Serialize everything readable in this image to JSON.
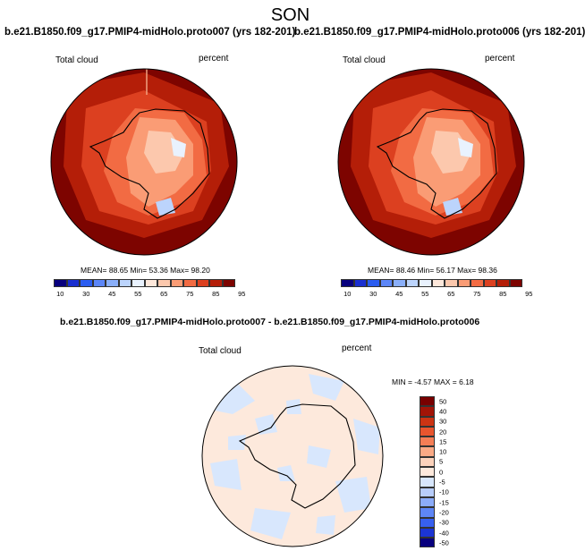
{
  "season": "SON",
  "panels": [
    {
      "case": "b.e21.B1850.f09_g17.PMIP4-midHolo.proto007 (yrs 182-201)",
      "field": "Total cloud",
      "units": "percent",
      "stats": "MEAN= 88.65 Min= 53.36 Max= 98.20"
    },
    {
      "case": "b.e21.B1850.f09_g17.PMIP4-midHolo.proto006 (yrs 182-201)",
      "field": "Total cloud",
      "units": "percent",
      "stats": "MEAN= 88.46 Min= 56.17 Max= 98.36"
    }
  ],
  "diff_panel": {
    "title": "b.e21.B1850.f09_g17.PMIP4-midHolo.proto007 - b.e21.B1850.f09_g17.PMIP4-midHolo.proto006",
    "field": "Total cloud",
    "units": "percent",
    "stats": "MIN = -4.57 MAX = 6.18"
  },
  "colorbar": {
    "colors": [
      "#08007e",
      "#1a2fd0",
      "#2b5df0",
      "#5c86f7",
      "#8aaffa",
      "#bcd4fc",
      "#e9f2fe",
      "#fee8db",
      "#fcc8ad",
      "#fa9c75",
      "#f26b43",
      "#dc4020",
      "#b41e08",
      "#7d0400"
    ],
    "tick_labels": [
      "10",
      "30",
      "45",
      "55",
      "65",
      "75",
      "85",
      "95"
    ]
  },
  "diff_colorbar": {
    "colors": [
      "#08007e",
      "#1c35d4",
      "#3760f0",
      "#5e86f6",
      "#8cacfa",
      "#b8cdfb",
      "#d8e7fd",
      "#fde9dc",
      "#fcd2bb",
      "#fbaa86",
      "#f57e56",
      "#e9552e",
      "#cc3414",
      "#a21407",
      "#780000"
    ],
    "tick_labels": [
      "50",
      "40",
      "30",
      "20",
      "15",
      "10",
      "5",
      "0",
      "-5",
      "-10",
      "-15",
      "-20",
      "-30",
      "-40",
      "-50"
    ]
  }
}
